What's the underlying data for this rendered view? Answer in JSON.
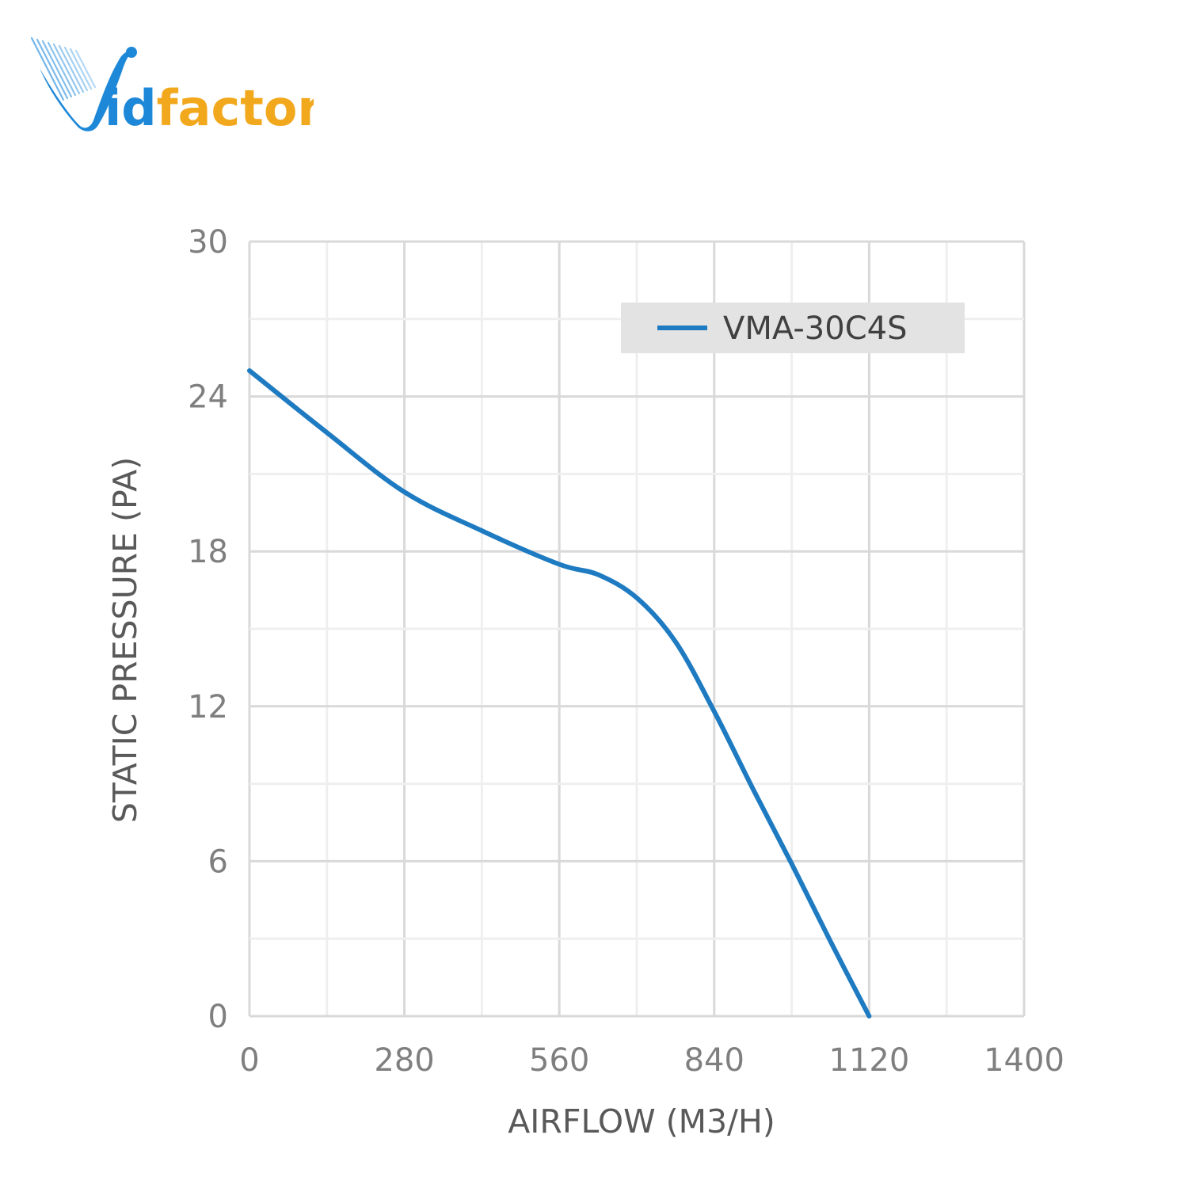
{
  "logo": {
    "text_prefix": "id",
    "text_suffix": "factor",
    "colors": {
      "blue": "#1e88d8",
      "gold": "#f2a81d"
    }
  },
  "chart_data": {
    "type": "line",
    "xlabel": "AIRFLOW (M3/H)",
    "ylabel": "STATIC PRESSURE (PA)",
    "xlim": [
      0,
      1400
    ],
    "ylim": [
      0,
      30
    ],
    "x_ticks": [
      0,
      280,
      560,
      840,
      1120,
      1400
    ],
    "y_ticks": [
      0,
      6,
      12,
      18,
      24,
      30
    ],
    "grid": true,
    "legend_position": "top-right",
    "series": [
      {
        "name": "VMA-30C4S",
        "color": "#1f7bc1",
        "x": [
          0,
          140,
          280,
          420,
          560,
          630,
          700,
          770,
          840,
          910,
          980,
          1050,
          1120
        ],
        "y": [
          25,
          22.6,
          20.3,
          18.8,
          17.5,
          17.1,
          16.2,
          14.5,
          11.8,
          8.8,
          5.9,
          2.9,
          0
        ]
      }
    ]
  }
}
